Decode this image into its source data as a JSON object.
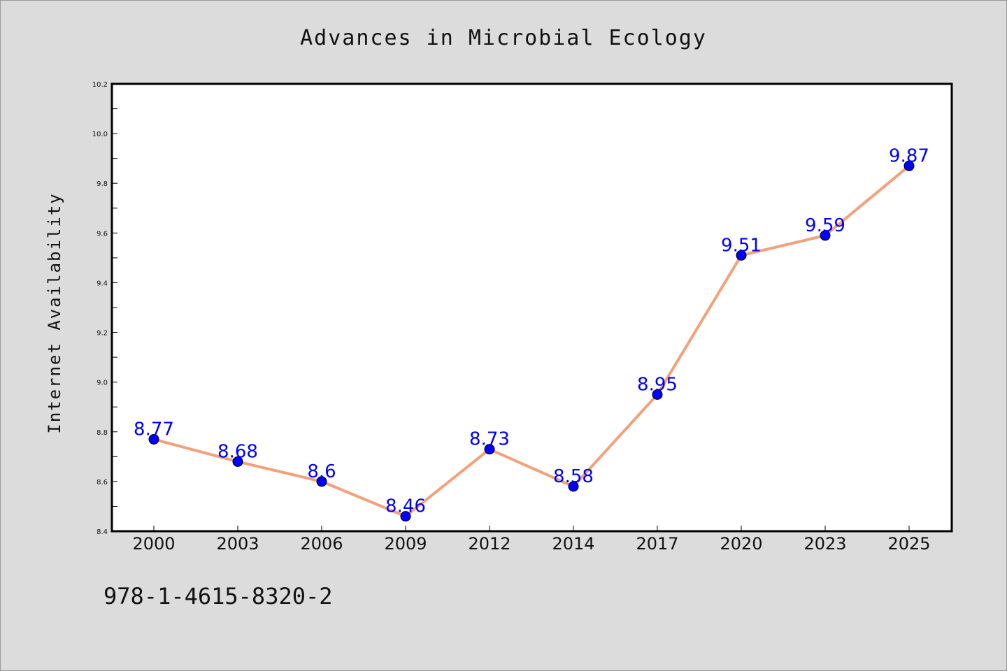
{
  "chart_data": {
    "type": "line",
    "title": "Advances in Microbial Ecology",
    "xlabel": "",
    "ylabel": "Internet Availability",
    "categories": [
      "2000",
      "2003",
      "2006",
      "2009",
      "2012",
      "2014",
      "2017",
      "2020",
      "2023",
      "2025"
    ],
    "series": [
      {
        "values": [
          8.77,
          8.68,
          8.6,
          8.46,
          8.73,
          8.58,
          8.95,
          9.51,
          9.59,
          9.87
        ],
        "data_labels": [
          "8.77",
          "8.68",
          "8.6",
          "8.46",
          "8.73",
          "8.58",
          "8.95",
          "9.51",
          "9.59",
          "9.87"
        ],
        "line_color": "#f4a07a",
        "marker_color": "#0000ff"
      }
    ],
    "ylim": [
      8.4,
      10.2
    ],
    "yticks": [
      "8.4",
      "8.6",
      "8.8",
      "9.0",
      "9.2",
      "9.4",
      "9.6",
      "9.8",
      "10.0",
      "10.2"
    ],
    "grid": false,
    "legend": "none",
    "annotation": "978-1-4615-8320-2"
  }
}
